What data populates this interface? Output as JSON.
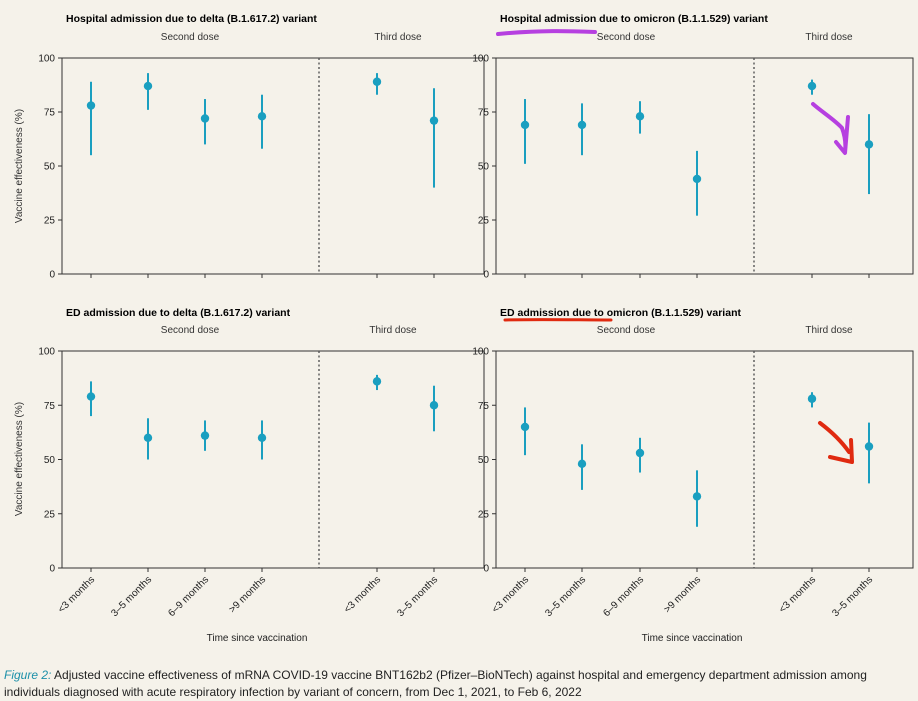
{
  "chart_data": {
    "type": "scatter",
    "ylabel": "Vaccine effectiveness (%)",
    "xlabel": "Time since vaccination",
    "ylim": [
      0,
      100
    ],
    "yticks": [
      0,
      25,
      50,
      75,
      100
    ],
    "group_labels": [
      "Second dose",
      "Third dose"
    ],
    "second_dose_categories": [
      "<3 months",
      "3–5 months",
      "6–9 months",
      ">9 months"
    ],
    "third_dose_categories": [
      "<3 months",
      "3–5 months"
    ],
    "marker_color": "#1a9fc0",
    "panels": [
      {
        "title": "Hospital admission due to delta (B.1.617.2) variant",
        "second_dose": [
          {
            "est": 78,
            "lo": 55,
            "hi": 89
          },
          {
            "est": 87,
            "lo": 76,
            "hi": 93
          },
          {
            "est": 72,
            "lo": 60,
            "hi": 81
          },
          {
            "est": 73,
            "lo": 58,
            "hi": 83
          }
        ],
        "third_dose": [
          {
            "est": 89,
            "lo": 83,
            "hi": 93
          },
          {
            "est": 71,
            "lo": 40,
            "hi": 86
          }
        ]
      },
      {
        "title": "Hospital admission due to omicron (B.1.1.529) variant",
        "second_dose": [
          {
            "est": 69,
            "lo": 51,
            "hi": 81
          },
          {
            "est": 69,
            "lo": 55,
            "hi": 79
          },
          {
            "est": 73,
            "lo": 65,
            "hi": 80
          },
          {
            "est": 44,
            "lo": 27,
            "hi": 57
          }
        ],
        "third_dose": [
          {
            "est": 87,
            "lo": 83,
            "hi": 90
          },
          {
            "est": 60,
            "lo": 37,
            "hi": 74
          }
        ]
      },
      {
        "title": "ED admission due to delta (B.1.617.2) variant",
        "second_dose": [
          {
            "est": 79,
            "lo": 70,
            "hi": 86
          },
          {
            "est": 60,
            "lo": 50,
            "hi": 69
          },
          {
            "est": 61,
            "lo": 54,
            "hi": 68
          },
          {
            "est": 60,
            "lo": 50,
            "hi": 68
          }
        ],
        "third_dose": [
          {
            "est": 86,
            "lo": 82,
            "hi": 89
          },
          {
            "est": 75,
            "lo": 63,
            "hi": 84
          }
        ]
      },
      {
        "title": "ED admission due to omicron (B.1.1.529) variant",
        "second_dose": [
          {
            "est": 65,
            "lo": 52,
            "hi": 74
          },
          {
            "est": 48,
            "lo": 36,
            "hi": 57
          },
          {
            "est": 53,
            "lo": 44,
            "hi": 60
          },
          {
            "est": 33,
            "lo": 19,
            "hi": 45
          }
        ],
        "third_dose": [
          {
            "est": 78,
            "lo": 74,
            "hi": 81
          },
          {
            "est": 56,
            "lo": 39,
            "hi": 67
          }
        ]
      }
    ]
  },
  "annotations": {
    "purple_color": "#b640e0",
    "red_color": "#e02a10"
  },
  "caption": {
    "label": "Figure 2:",
    "text": "Adjusted vaccine effectiveness of mRNA COVID-19 vaccine BNT162b2 (Pfizer–BioNTech) against hospital and emergency department admission among individuals diagnosed with acute respiratory infection by variant of concern, from Dec 1, 2021, to Feb 6, 2022"
  }
}
